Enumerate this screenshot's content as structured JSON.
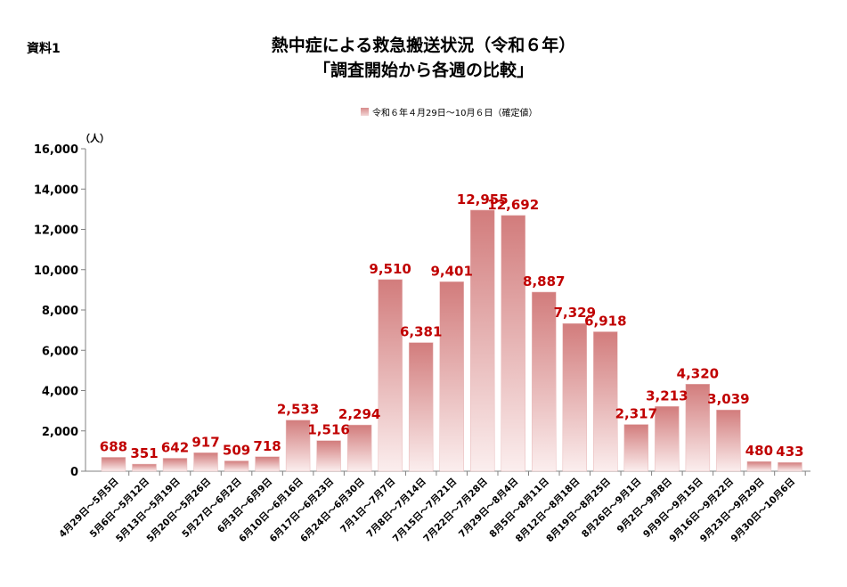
{
  "doc_label": "資料1",
  "chart_data": {
    "type": "bar",
    "title": "熱中症による救急搬送状況（令和６年）",
    "subtitle": "「調査開始から各週の比較」",
    "unit": "（人）",
    "legend": "令和６年４月29日～10月６日（確定値）",
    "legend_position": "top",
    "ylim": [
      0,
      16000
    ],
    "yticks": [
      "0",
      "2,000",
      "4,000",
      "6,000",
      "8,000",
      "10,000",
      "12,000",
      "14,000",
      "16,000"
    ],
    "grid": false,
    "bar_color": "#d88c8c",
    "label_color": "#c00000",
    "categories": [
      "4月29日～5月5日",
      "5月6日～5月12日",
      "5月13日～5月19日",
      "5月20日～5月26日",
      "5月27日～6月2日",
      "6月3日～6月9日",
      "6月10日～6月16日",
      "6月17日～6月23日",
      "6月24日～6月30日",
      "7月1日～7月7日",
      "7月8日～7月14日",
      "7月15日～7月21日",
      "7月22日～7月28日",
      "7月29日～8月4日",
      "8月5日～8月11日",
      "8月12日～8月18日",
      "8月19日～8月25日",
      "8月26日～9月1日",
      "9月2日～9月8日",
      "9月9日～9月15日",
      "9月16日～9月22日",
      "9月23日～9月29日",
      "9月30日～10月6日"
    ],
    "values": [
      688,
      351,
      642,
      917,
      509,
      718,
      2533,
      1516,
      2294,
      9510,
      6381,
      9401,
      12955,
      12692,
      8887,
      7329,
      6918,
      2317,
      3213,
      4320,
      3039,
      480,
      433
    ],
    "value_labels": [
      "688",
      "351",
      "642",
      "917",
      "509",
      "718",
      "2,533",
      "1,516",
      "2,294",
      "9,510",
      "6,381",
      "9,401",
      "12,955",
      "12,692",
      "8,887",
      "7,329",
      "6,918",
      "2,317",
      "3,213",
      "4,320",
      "3,039",
      "480",
      "433"
    ]
  }
}
